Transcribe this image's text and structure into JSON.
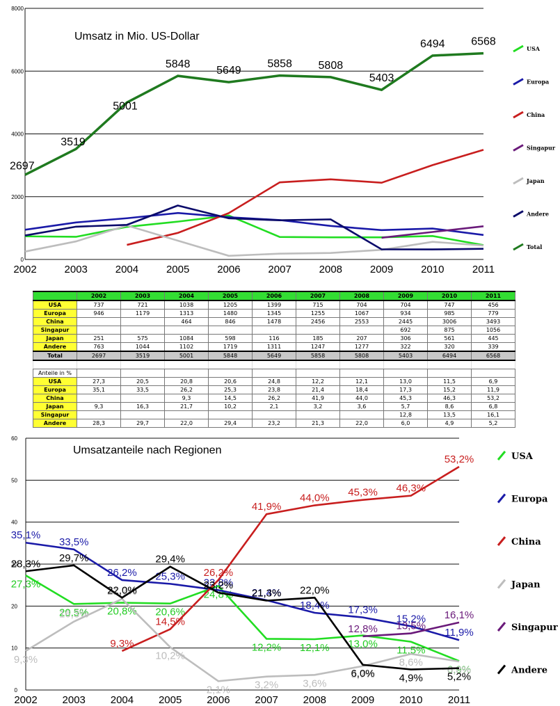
{
  "chart_data": [
    {
      "type": "line",
      "title": "Umsatz in Mio. US-Dollar",
      "categories": [
        "2002",
        "2003",
        "2004",
        "2005",
        "2006",
        "2007",
        "2008",
        "2009",
        "2010",
        "2011"
      ],
      "ylim": [
        0,
        8000
      ],
      "yticks": [
        0,
        2000,
        4000,
        6000,
        8000
      ],
      "grid": true,
      "legend_position": "right",
      "series": [
        {
          "name": "USA",
          "color": "#22dd22",
          "values": [
            737,
            721,
            1038,
            1205,
            1399,
            715,
            704,
            704,
            747,
            456
          ]
        },
        {
          "name": "Europa",
          "color": "#1a1aa8",
          "values": [
            946,
            1179,
            1313,
            1480,
            1345,
            1255,
            1067,
            934,
            985,
            779
          ]
        },
        {
          "name": "China",
          "color": "#c81e1e",
          "values": [
            null,
            null,
            464,
            846,
            1478,
            2456,
            2553,
            2445,
            3006,
            3493
          ]
        },
        {
          "name": "Singapur",
          "color": "#6a1a7a",
          "values": [
            null,
            null,
            null,
            null,
            null,
            null,
            null,
            692,
            875,
            1056
          ]
        },
        {
          "name": "Japan",
          "color": "#bdbdbd",
          "values": [
            251,
            575,
            1084,
            598,
            116,
            185,
            207,
            306,
            561,
            445
          ]
        },
        {
          "name": "Andere",
          "color": "#0a0a6a",
          "values": [
            763,
            1044,
            1102,
            1719,
            1311,
            1247,
            1277,
            322,
            320,
            339
          ]
        },
        {
          "name": "Total",
          "color": "#1f7a1f",
          "values": [
            2697,
            3519,
            5001,
            5848,
            5649,
            5858,
            5808,
            5403,
            6494,
            6568
          ],
          "labels": [
            "2697",
            "3519",
            "5001",
            "5848",
            "5649",
            "5858",
            "5808",
            "5403",
            "6494",
            "6568"
          ]
        }
      ]
    },
    {
      "type": "table",
      "header": [
        "2002",
        "2003",
        "2004",
        "2005",
        "2006",
        "2007",
        "2008",
        "2009",
        "2010",
        "2011"
      ],
      "rows": [
        {
          "label": "USA",
          "cells": [
            "737",
            "721",
            "1038",
            "1205",
            "1399",
            "715",
            "704",
            "704",
            "747",
            "456"
          ]
        },
        {
          "label": "Europa",
          "cells": [
            "946",
            "1179",
            "1313",
            "1480",
            "1345",
            "1255",
            "1067",
            "934",
            "985",
            "779"
          ]
        },
        {
          "label": "China",
          "cells": [
            "",
            "",
            "464",
            "846",
            "1478",
            "2456",
            "2553",
            "2445",
            "3006",
            "3493"
          ]
        },
        {
          "label": "Singapur",
          "cells": [
            "",
            "",
            "",
            "",
            "",
            "",
            "",
            "692",
            "875",
            "1056"
          ]
        },
        {
          "label": "Japan",
          "cells": [
            "251",
            "575",
            "1084",
            "598",
            "116",
            "185",
            "207",
            "306",
            "561",
            "445"
          ]
        },
        {
          "label": "Andere",
          "cells": [
            "763",
            "1044",
            "1102",
            "1719",
            "1311",
            "1247",
            "1277",
            "322",
            "320",
            "339"
          ]
        }
      ],
      "total": {
        "label": "Total",
        "cells": [
          "2697",
          "3519",
          "5001",
          "5848",
          "5649",
          "5858",
          "5808",
          "5403",
          "6494",
          "6568"
        ]
      },
      "shares_title": "Anteile in %",
      "share_rows": [
        {
          "label": "USA",
          "cells": [
            "27,3",
            "20,5",
            "20,8",
            "20,6",
            "24,8",
            "12,2",
            "12,1",
            "13,0",
            "11,5",
            "6,9"
          ]
        },
        {
          "label": "Europa",
          "cells": [
            "35,1",
            "33,5",
            "26,2",
            "25,3",
            "23,8",
            "21,4",
            "18,4",
            "17,3",
            "15,2",
            "11,9"
          ]
        },
        {
          "label": "China",
          "cells": [
            "",
            "",
            "9,3",
            "14,5",
            "26,2",
            "41,9",
            "44,0",
            "45,3",
            "46,3",
            "53,2"
          ]
        },
        {
          "label": "Japan",
          "cells": [
            "9,3",
            "16,3",
            "21,7",
            "10,2",
            "2,1",
            "3,2",
            "3,6",
            "5,7",
            "8,6",
            "6,8"
          ]
        },
        {
          "label": "Singapur",
          "cells": [
            "",
            "",
            "",
            "",
            "",
            "",
            "",
            "12,8",
            "13,5",
            "16,1"
          ]
        },
        {
          "label": "Andere",
          "cells": [
            "28,3",
            "29,7",
            "22,0",
            "29,4",
            "23,2",
            "21,3",
            "22,0",
            "6,0",
            "4,9",
            "5,2"
          ]
        }
      ]
    },
    {
      "type": "line",
      "title": "Umsatzanteile nach Regionen",
      "categories": [
        "2002",
        "2003",
        "2004",
        "2005",
        "2006",
        "2007",
        "2008",
        "2009",
        "2010",
        "2011"
      ],
      "ylim": [
        0,
        60
      ],
      "yticks": [
        0,
        10,
        20,
        30,
        40,
        50,
        60
      ],
      "grid": true,
      "legend_position": "right",
      "series": [
        {
          "name": "USA",
          "color": "#22dd22",
          "values": [
            27.3,
            20.5,
            20.8,
            20.6,
            24.8,
            12.2,
            12.1,
            13.0,
            11.5,
            6.9
          ],
          "labels": [
            "27,3%",
            "20,5%",
            "20,8%",
            "20,6%",
            "24,8%",
            "12,2%",
            "12,1%",
            "13,0%",
            "11,5%",
            "6,9%"
          ]
        },
        {
          "name": "Europa",
          "color": "#1a1aa8",
          "values": [
            35.1,
            33.5,
            26.2,
            25.3,
            23.8,
            21.4,
            18.4,
            17.3,
            15.2,
            11.9
          ],
          "labels": [
            "35,1%",
            "33,5%",
            "26,2%",
            "25,3%",
            "23,8%",
            "21,4%",
            "18,4%",
            "17,3%",
            "15,2%",
            "11,9%"
          ]
        },
        {
          "name": "China",
          "color": "#c81e1e",
          "values": [
            null,
            null,
            9.3,
            14.5,
            26.2,
            41.9,
            44.0,
            45.3,
            46.3,
            53.2
          ],
          "labels": [
            "",
            "",
            "9,3%",
            "14,5%",
            "26,2%",
            "41,9%",
            "44,0%",
            "45,3%",
            "46,3%",
            "53,2%"
          ]
        },
        {
          "name": "Japan",
          "color": "#bdbdbd",
          "values": [
            9.3,
            16.3,
            21.7,
            10.2,
            2.1,
            3.2,
            3.6,
            5.7,
            8.6,
            6.8
          ],
          "labels": [
            "9,3%",
            "16,3%",
            "21,7%",
            "10,2%",
            "2,1%",
            "3,2%",
            "3,6%",
            "5,7%",
            "8,6%",
            "6,8%"
          ]
        },
        {
          "name": "Singapur",
          "color": "#6a1a7a",
          "values": [
            null,
            null,
            null,
            null,
            null,
            null,
            null,
            12.8,
            13.5,
            16.1
          ],
          "labels": [
            "",
            "",
            "",
            "",
            "",
            "",
            "",
            "12,8%",
            "13,5%",
            "16,1%"
          ]
        },
        {
          "name": "Andere",
          "color": "#000000",
          "values": [
            28.3,
            29.7,
            22.0,
            29.4,
            23.2,
            21.3,
            22.0,
            6.0,
            4.9,
            5.2
          ],
          "labels": [
            "28,3%",
            "29,7%",
            "22,0%",
            "29,4%",
            "23,2%",
            "21,3%",
            "22,0%",
            "6,0%",
            "4,9%",
            "5,2%"
          ]
        }
      ]
    }
  ]
}
